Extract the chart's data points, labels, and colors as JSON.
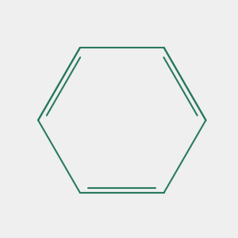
{
  "bg_color": "#efefef",
  "bond_color": "#2a7a60",
  "o_color": "#cc0000",
  "n_color": "#0000cc",
  "cl_color": "#007700",
  "lw": 1.5,
  "fs": 10
}
